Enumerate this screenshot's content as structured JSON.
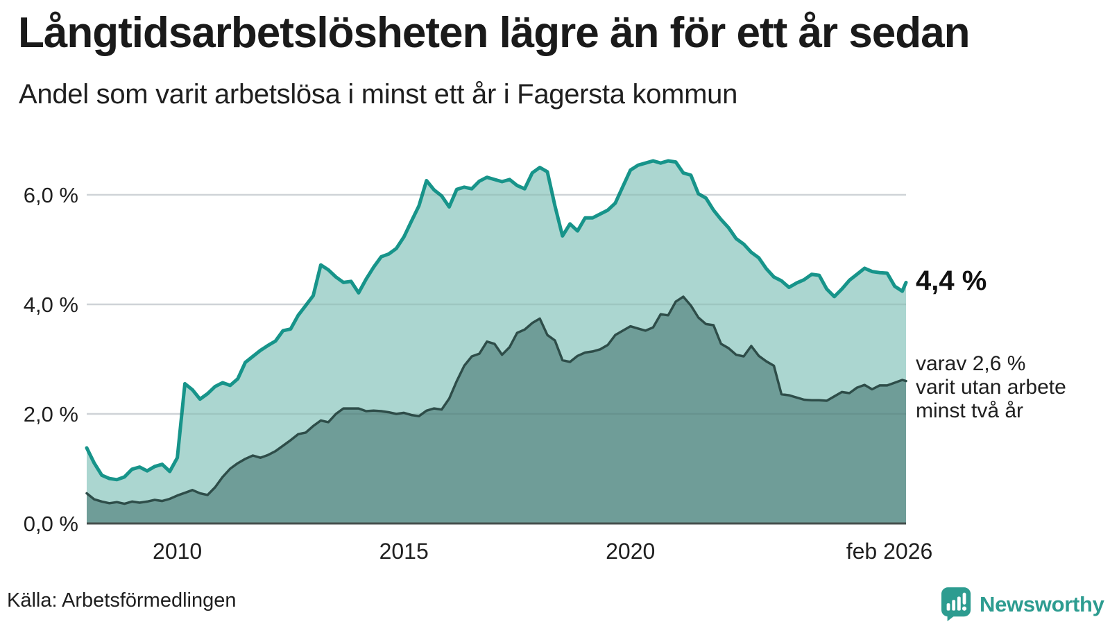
{
  "header": {
    "title": "Långtidsarbetslösheten lägre än för ett år sedan",
    "subtitle": "Andel som varit arbetslösa i minst ett år i Fagersta kommun"
  },
  "annotations": {
    "latest_value": "4,4 %",
    "secondary_label": "varav 2,6 %\nvarit utan arbete\nminst två år"
  },
  "source": {
    "label": "Källa: Arbetsförmedlingen"
  },
  "branding": {
    "name": "Newsworthy",
    "logo_icon": "speech-bubble-bar-chart-icon"
  },
  "colors": {
    "accent_teal": "#17948a",
    "fill_light": "#abd6d0",
    "fill_dark": "#6f9d98",
    "line_dark": "#2e4d49",
    "grid": "#e3e5e9",
    "baseline": "#454f4d",
    "text": "#1a1a1a",
    "brand": "#2d9c90"
  },
  "chart_data": {
    "type": "area",
    "title": "Långtidsarbetslösheten lägre än för ett år sedan",
    "subtitle": "Andel som varit arbetslösa i minst ett år i Fagersta kommun",
    "unit": "%",
    "grid": true,
    "legend": "none (direct labels at line ends)",
    "x_axis": {
      "range_decimal_years": [
        2008.0,
        2026.083
      ],
      "ticks": [
        {
          "t": 2010,
          "label": "2010"
        },
        {
          "t": 2015,
          "label": "2015"
        },
        {
          "t": 2020,
          "label": "2020"
        },
        {
          "t": 2026.083,
          "label": "feb 2026"
        }
      ]
    },
    "y_axis": {
      "range": [
        0,
        6.9
      ],
      "ticks": [
        {
          "v": 0,
          "label": "0,0 %"
        },
        {
          "v": 2,
          "label": "2,0 %"
        },
        {
          "v": 4,
          "label": "4,0 %"
        },
        {
          "v": 6,
          "label": "6,0 %"
        }
      ]
    },
    "sampling": {
      "start_decimal_year": 2008.0,
      "step_months": 2,
      "end_decimal_year": 2026.083
    },
    "series": [
      {
        "name": "Arbetslösa minst ett år",
        "end_label": "4,4 %",
        "end_value": 4.4,
        "line_color": "#17948a",
        "fill_color": "#abd6d0",
        "line_width": 5,
        "values": [
          1.38,
          1.1,
          0.88,
          0.82,
          0.8,
          0.85,
          0.99,
          1.03,
          0.96,
          1.04,
          1.08,
          0.95,
          1.2,
          2.55,
          2.44,
          2.27,
          2.37,
          2.5,
          2.57,
          2.52,
          2.64,
          2.94,
          3.05,
          3.16,
          3.25,
          3.33,
          3.52,
          3.55,
          3.8,
          3.98,
          4.16,
          4.72,
          4.63,
          4.5,
          4.4,
          4.42,
          4.21,
          4.46,
          4.68,
          4.87,
          4.92,
          5.02,
          5.23,
          5.52,
          5.8,
          6.26,
          6.09,
          5.98,
          5.78,
          6.1,
          6.14,
          6.11,
          6.25,
          6.32,
          6.28,
          6.24,
          6.28,
          6.17,
          6.11,
          6.4,
          6.5,
          6.42,
          5.8,
          5.25,
          5.47,
          5.34,
          5.58,
          5.58,
          5.65,
          5.72,
          5.85,
          6.15,
          6.45,
          6.54,
          6.58,
          6.62,
          6.58,
          6.62,
          6.6,
          6.4,
          6.36,
          6.02,
          5.94,
          5.72,
          5.55,
          5.4,
          5.2,
          5.1,
          4.95,
          4.85,
          4.65,
          4.5,
          4.43,
          4.31,
          4.39,
          4.45,
          4.55,
          4.53,
          4.28,
          4.14,
          4.28,
          4.44,
          4.55,
          4.66,
          4.6,
          4.58,
          4.57,
          4.33,
          4.24,
          4.4
        ]
      },
      {
        "name": "Arbetslösa minst två år",
        "end_label": "2,6 %",
        "end_value": 2.6,
        "line_color": "#2e4d49",
        "fill_color": "#6f9d98",
        "line_width": 3.5,
        "values": [
          0.55,
          0.44,
          0.4,
          0.37,
          0.39,
          0.36,
          0.4,
          0.38,
          0.4,
          0.43,
          0.41,
          0.45,
          0.51,
          0.56,
          0.61,
          0.55,
          0.52,
          0.66,
          0.85,
          1.0,
          1.1,
          1.18,
          1.24,
          1.2,
          1.25,
          1.32,
          1.42,
          1.52,
          1.63,
          1.66,
          1.78,
          1.88,
          1.85,
          2.0,
          2.1,
          2.1,
          2.1,
          2.05,
          2.06,
          2.05,
          2.03,
          2.0,
          2.02,
          1.98,
          1.96,
          2.06,
          2.1,
          2.08,
          2.28,
          2.6,
          2.88,
          3.05,
          3.1,
          3.32,
          3.28,
          3.08,
          3.22,
          3.48,
          3.54,
          3.66,
          3.74,
          3.44,
          3.34,
          2.98,
          2.95,
          3.06,
          3.12,
          3.14,
          3.18,
          3.26,
          3.44,
          3.52,
          3.6,
          3.56,
          3.52,
          3.58,
          3.82,
          3.8,
          4.05,
          4.14,
          3.98,
          3.76,
          3.64,
          3.62,
          3.28,
          3.2,
          3.08,
          3.05,
          3.24,
          3.06,
          2.96,
          2.88,
          2.36,
          2.34,
          2.3,
          2.26,
          2.25,
          2.25,
          2.24,
          2.32,
          2.4,
          2.38,
          2.48,
          2.53,
          2.45,
          2.52,
          2.52,
          2.57,
          2.62,
          2.6
        ]
      }
    ]
  }
}
